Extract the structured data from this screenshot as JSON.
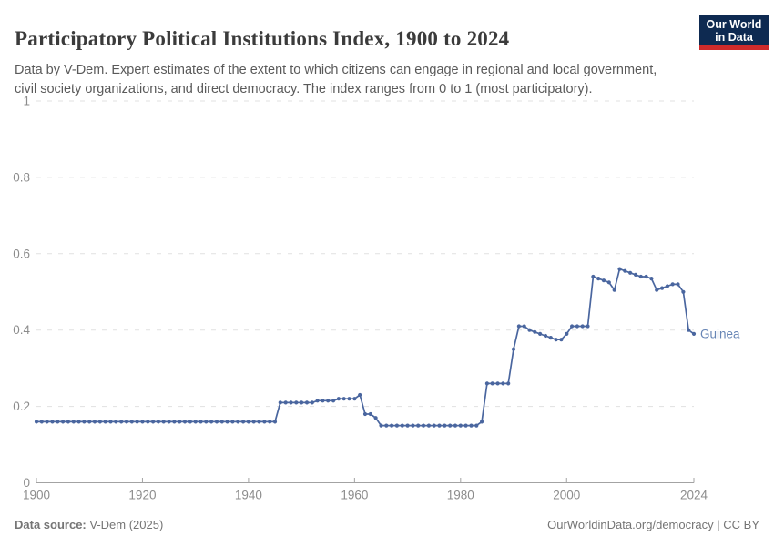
{
  "header": {
    "title": "Participatory Political Institutions Index, 1900 to 2024",
    "subtitle": "Data by V-Dem. Expert estimates of the extent to which citizens can engage in regional and local government, civil society organizations, and direct democracy. The index ranges from 0 to 1 (most participatory).",
    "logo": {
      "line1": "Our World",
      "line2": "in Data",
      "bg_color": "#0e2a51",
      "stripe_color": "#cf2b2b"
    }
  },
  "chart_data": {
    "type": "line",
    "title": "Participatory Political Institutions Index, 1900 to 2024",
    "xlabel": "",
    "ylabel": "",
    "xlim": [
      1900,
      2024
    ],
    "ylim": [
      0,
      1
    ],
    "x_ticks": [
      1900,
      1920,
      1940,
      1960,
      1980,
      2000,
      2024
    ],
    "y_ticks": [
      0,
      0.2,
      0.4,
      0.6,
      0.8,
      1
    ],
    "grid": "dashed-horizontal",
    "legend": "end-of-line-label",
    "colors": {
      "grid": "#e1e1e1",
      "axis": "#a3a3a3",
      "tick_label": "#8c8c8c"
    },
    "series": [
      {
        "name": "Guinea",
        "color": "#4a669f",
        "label_color": "#6785b5",
        "marker": "circle",
        "x_start": 1900,
        "x_step": 1,
        "values": [
          0.16,
          0.16,
          0.16,
          0.16,
          0.16,
          0.16,
          0.16,
          0.16,
          0.16,
          0.16,
          0.16,
          0.16,
          0.16,
          0.16,
          0.16,
          0.16,
          0.16,
          0.16,
          0.16,
          0.16,
          0.16,
          0.16,
          0.16,
          0.16,
          0.16,
          0.16,
          0.16,
          0.16,
          0.16,
          0.16,
          0.16,
          0.16,
          0.16,
          0.16,
          0.16,
          0.16,
          0.16,
          0.16,
          0.16,
          0.16,
          0.16,
          0.16,
          0.16,
          0.16,
          0.16,
          0.16,
          0.21,
          0.21,
          0.21,
          0.21,
          0.21,
          0.21,
          0.21,
          0.215,
          0.215,
          0.215,
          0.215,
          0.22,
          0.22,
          0.22,
          0.22,
          0.23,
          0.18,
          0.18,
          0.17,
          0.15,
          0.15,
          0.15,
          0.15,
          0.15,
          0.15,
          0.15,
          0.15,
          0.15,
          0.15,
          0.15,
          0.15,
          0.15,
          0.15,
          0.15,
          0.15,
          0.15,
          0.15,
          0.15,
          0.16,
          0.26,
          0.26,
          0.26,
          0.26,
          0.26,
          0.35,
          0.41,
          0.41,
          0.4,
          0.395,
          0.39,
          0.385,
          0.38,
          0.375,
          0.375,
          0.39,
          0.41,
          0.41,
          0.41,
          0.41,
          0.54,
          0.535,
          0.53,
          0.525,
          0.505,
          0.56,
          0.555,
          0.55,
          0.545,
          0.54,
          0.54,
          0.535,
          0.505,
          0.51,
          0.515,
          0.52,
          0.52,
          0.5,
          0.4,
          0.39
        ]
      }
    ]
  },
  "footer": {
    "source_label": "Data source:",
    "source_value": " V-Dem (2025)",
    "right_text": "OurWorldinData.org/democracy | CC BY"
  }
}
